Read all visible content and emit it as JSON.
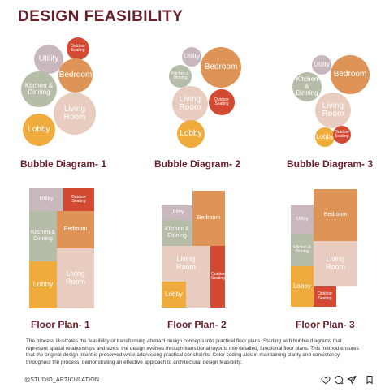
{
  "title": "DESIGN FEASIBILITY",
  "colors": {
    "utility": "#c9b7be",
    "outdoor_seating": "#d34a33",
    "bedroom": "#de9457",
    "kitchen_dinning": "#b5bca7",
    "living_room": "#e8ccbf",
    "lobby": "#efab3c",
    "heading": "#6b1f2a"
  },
  "rooms": {
    "utility": "Utility",
    "outdoor_seating": "Outdoor Seating",
    "bedroom": "Bedroom",
    "kitchen_dinning": "Kitchen & Dinning",
    "living_room": "Living Room",
    "lobby": "Lobby"
  },
  "bubble_diagrams": [
    {
      "heading": "Bubble Diagram- 1"
    },
    {
      "heading": "Bubble Diagram- 2"
    },
    {
      "heading": "Bubble Diagram- 3"
    }
  ],
  "floor_plans": [
    {
      "heading": "Floor Plan- 1"
    },
    {
      "heading": "Floor Plan- 2"
    },
    {
      "heading": "Floor Plan- 3"
    }
  ],
  "description": "The process illustrates the feasibility of transforming abstract design concepts into practical floor plans. Starting with bubble diagrams that represent spatial relationships and sizes, the design evolves through transitional layouts into detailed, functional floor plans. This method ensures that the original design intent is preserved while addressing practical constraints. Color coding aids in maintaining clarity and consistency throughout the process, demonstrating an effective approach to architectural design feasibility.",
  "footer": {
    "handle": "@STUDIO_ARTICULATION",
    "icons": [
      "heart-icon",
      "comment-icon",
      "share-icon",
      "bookmark-icon"
    ]
  }
}
